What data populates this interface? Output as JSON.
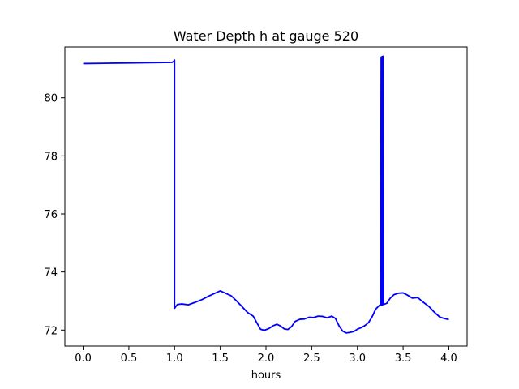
{
  "chart_data": {
    "type": "line",
    "title": "Water Depth h at gauge 520",
    "xlabel": "hours",
    "ylabel": "",
    "xlim": [
      -0.2,
      4.2
    ],
    "ylim": [
      71.45,
      81.75
    ],
    "x_ticks": [
      0.0,
      0.5,
      1.0,
      1.5,
      2.0,
      2.5,
      3.0,
      3.5,
      4.0
    ],
    "x_tick_labels": [
      "0.0",
      "0.5",
      "1.0",
      "1.5",
      "2.0",
      "2.5",
      "3.0",
      "3.5",
      "4.0"
    ],
    "y_ticks": [
      72,
      74,
      76,
      78,
      80
    ],
    "y_tick_labels": [
      "72",
      "74",
      "76",
      "78",
      "80"
    ],
    "grid": false,
    "line_color": "#0000ff",
    "series": [
      {
        "x": [
          0.0,
          0.5,
          0.97,
          0.99,
          1.0,
          1.0,
          1.03,
          1.08,
          1.15,
          1.22,
          1.3,
          1.38,
          1.45,
          1.5,
          1.55,
          1.62,
          1.68,
          1.74,
          1.8,
          1.86,
          1.9,
          1.94,
          1.98,
          2.03,
          2.08,
          2.12,
          2.16,
          2.2,
          2.24,
          2.28,
          2.32,
          2.37,
          2.42,
          2.47,
          2.52,
          2.57,
          2.62,
          2.67,
          2.72,
          2.76,
          2.8,
          2.84,
          2.88,
          2.92,
          2.96,
          3.0,
          3.04,
          3.08,
          3.12,
          3.16,
          3.2,
          3.24,
          3.255,
          3.26,
          3.265,
          3.27,
          3.275,
          3.28,
          3.285,
          3.32,
          3.36,
          3.4,
          3.45,
          3.5,
          3.55,
          3.6,
          3.66,
          3.72,
          3.78,
          3.84,
          3.9,
          3.95,
          4.0
        ],
        "y": [
          81.18,
          81.2,
          81.22,
          81.25,
          81.3,
          72.75,
          72.88,
          72.9,
          72.87,
          72.95,
          73.05,
          73.18,
          73.28,
          73.35,
          73.28,
          73.18,
          73.0,
          72.8,
          72.6,
          72.48,
          72.25,
          72.03,
          71.99,
          72.05,
          72.15,
          72.2,
          72.14,
          72.04,
          72.02,
          72.12,
          72.3,
          72.37,
          72.38,
          72.44,
          72.43,
          72.48,
          72.47,
          72.42,
          72.48,
          72.4,
          72.14,
          71.96,
          71.9,
          71.92,
          71.95,
          72.03,
          72.08,
          72.15,
          72.25,
          72.45,
          72.72,
          72.85,
          72.87,
          81.4,
          72.86,
          81.42,
          72.87,
          81.43,
          72.88,
          72.92,
          73.1,
          73.22,
          73.27,
          73.28,
          73.2,
          73.1,
          73.12,
          72.96,
          72.82,
          72.62,
          72.45,
          72.4,
          72.36
        ]
      }
    ]
  }
}
